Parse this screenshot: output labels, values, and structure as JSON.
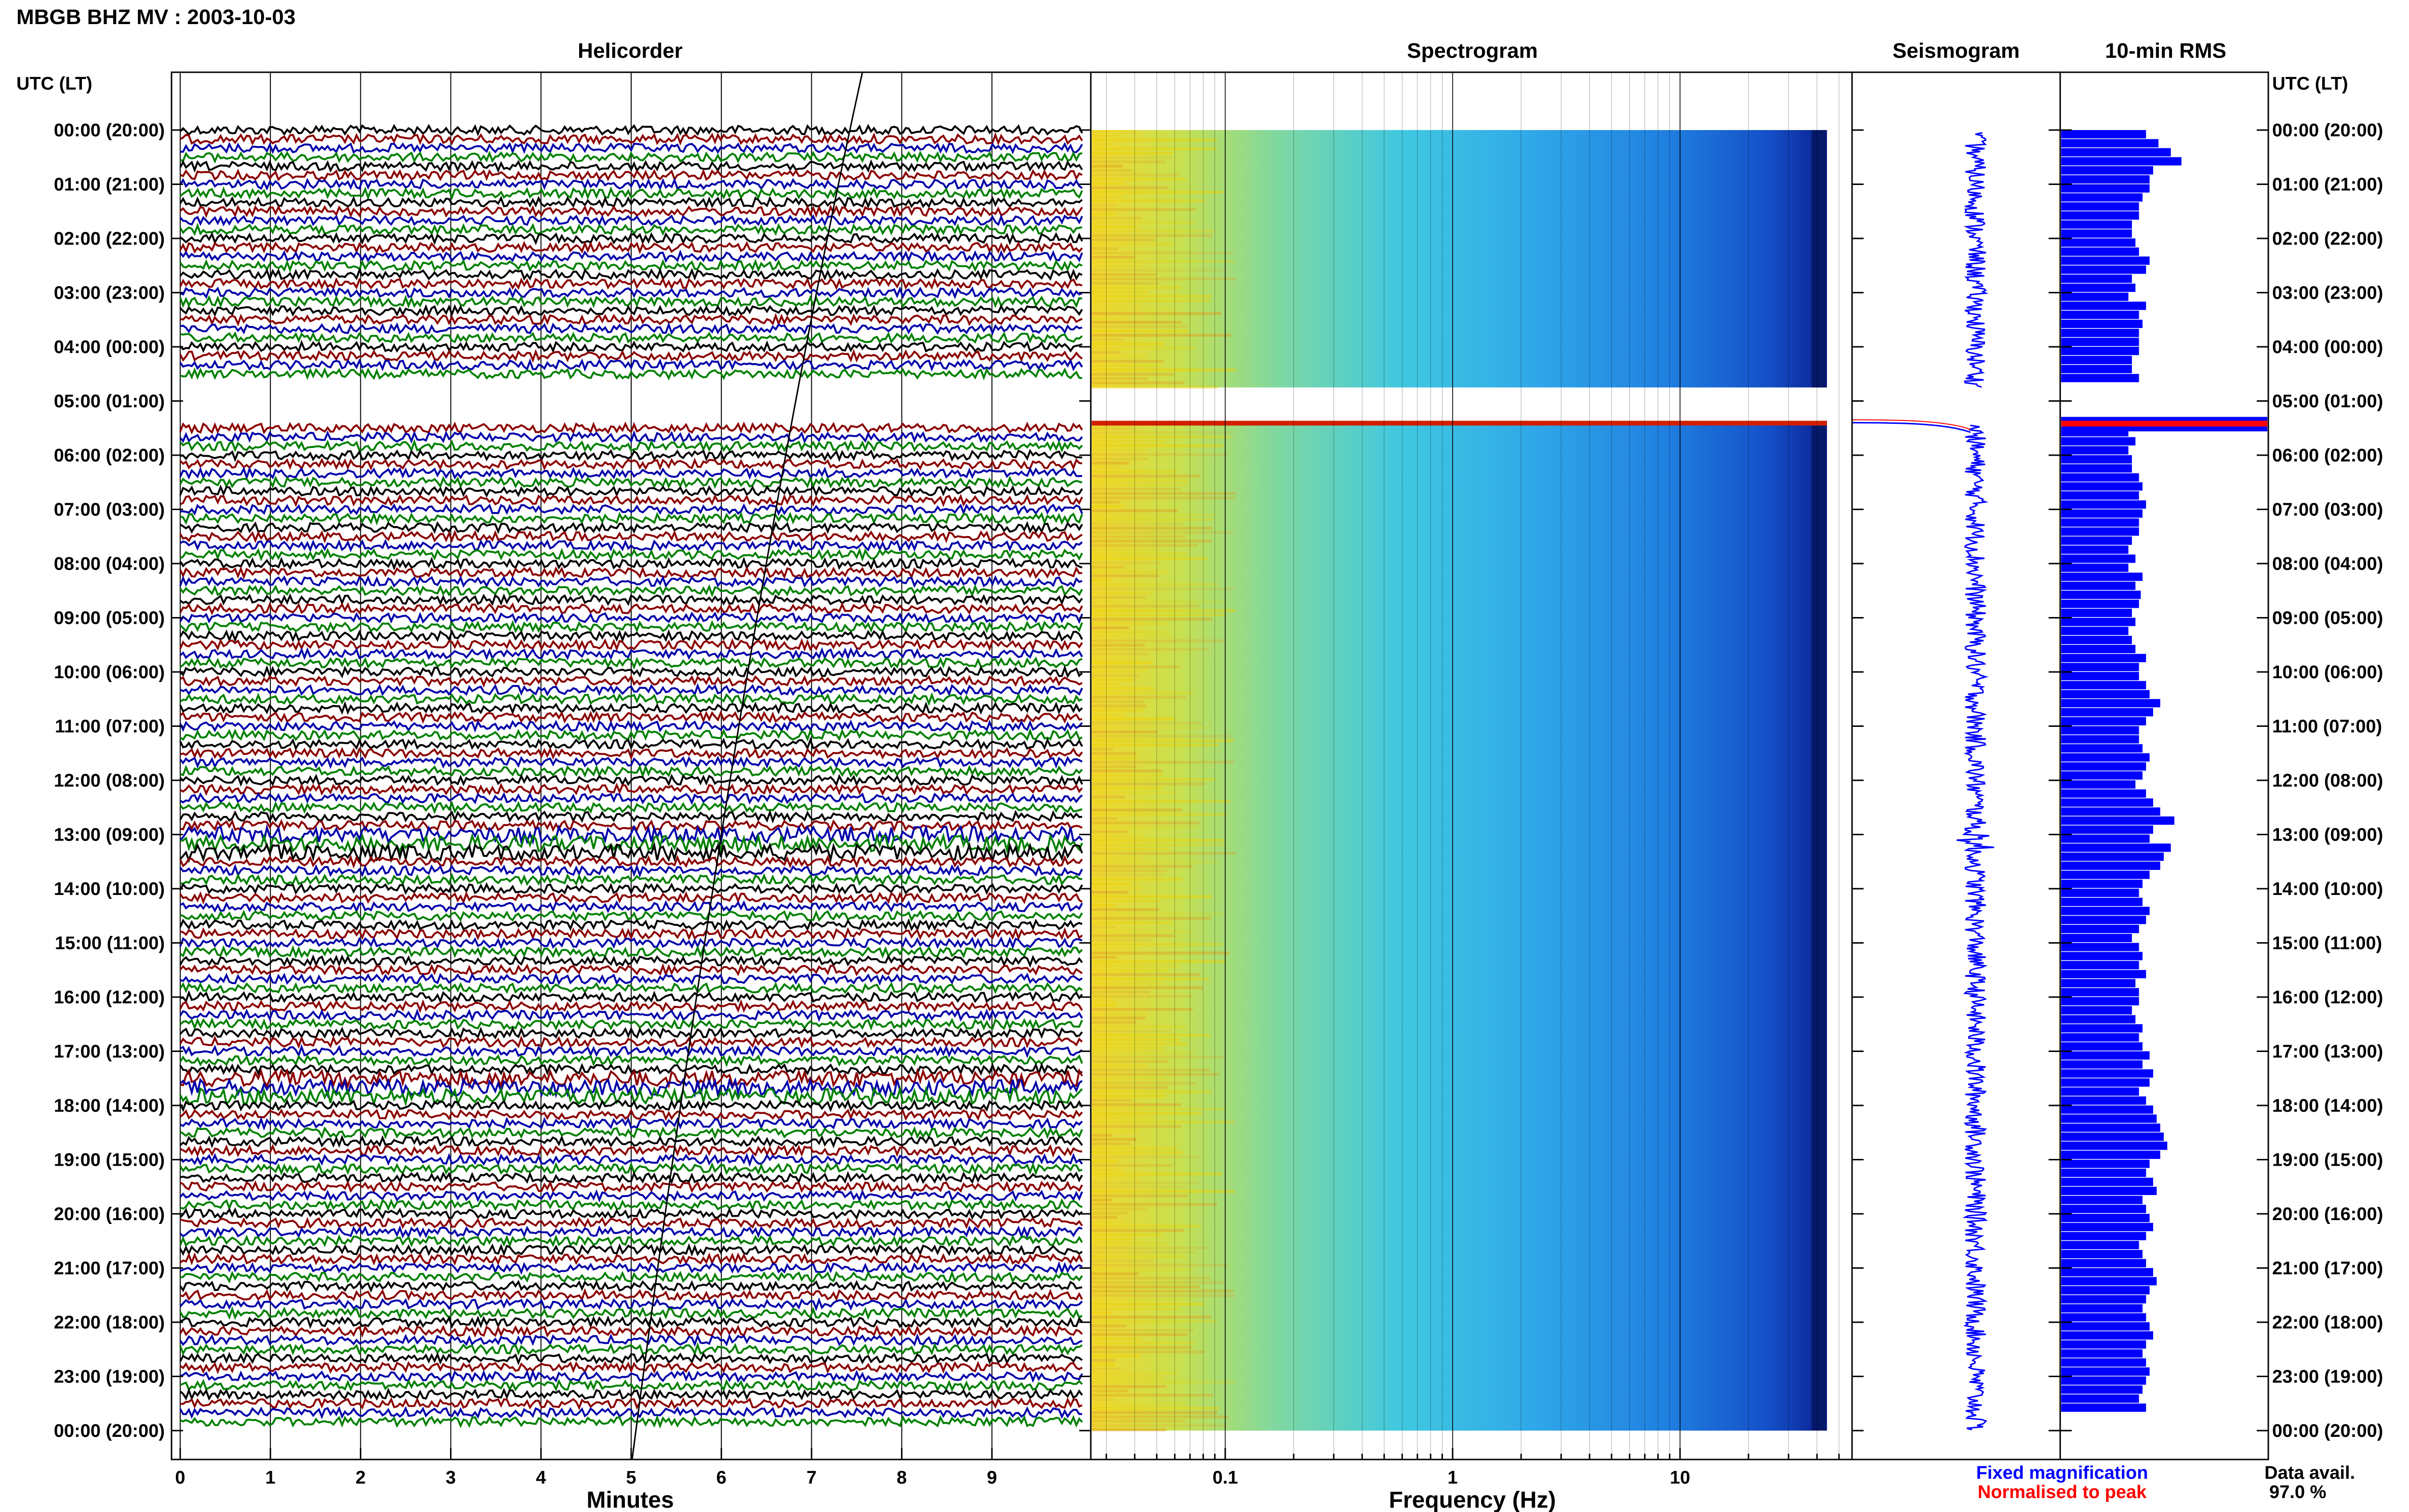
{
  "title": "MBGB BHZ MV : 2003-10-03",
  "panel_titles": {
    "helicorder": "Helicorder",
    "spectrogram": "Spectrogram",
    "seismogram": "Seismogram",
    "rms": "10-min RMS"
  },
  "utc_header": "UTC (LT)",
  "time_labels": [
    "00:00 (20:00)",
    "01:00 (21:00)",
    "02:00 (22:00)",
    "03:00 (23:00)",
    "04:00 (00:00)",
    "05:00 (01:00)",
    "06:00 (02:00)",
    "07:00 (03:00)",
    "08:00 (04:00)",
    "09:00 (05:00)",
    "10:00 (06:00)",
    "11:00 (07:00)",
    "12:00 (08:00)",
    "13:00 (09:00)",
    "14:00 (10:00)",
    "15:00 (11:00)",
    "16:00 (12:00)",
    "17:00 (13:00)",
    "18:00 (14:00)",
    "19:00 (15:00)",
    "20:00 (16:00)",
    "21:00 (17:00)",
    "22:00 (18:00)",
    "23:00 (19:00)",
    "00:00 (20:00)"
  ],
  "helicorder_axis": {
    "label": "Minutes",
    "ticks": [
      "0",
      "1",
      "2",
      "3",
      "4",
      "5",
      "6",
      "7",
      "8",
      "9"
    ]
  },
  "spectrogram_axis": {
    "label": "Frequency (Hz)",
    "ticks": [
      "0.1",
      "1",
      "10"
    ]
  },
  "legend": {
    "fixed": "Fixed magnification",
    "normalised": "Normalised to peak",
    "fixed_color": "#0000ff",
    "normalised_color": "#ff0000"
  },
  "data_avail": {
    "label": "Data avail.",
    "value": "97.0 %"
  },
  "colors": {
    "trace_cycle": [
      "#000000",
      "#8b0000",
      "#0000aa",
      "#008000"
    ],
    "rms_bar": "#0000ff",
    "gap_marker": "#ff0000"
  },
  "chart_data": {
    "type": "heatmap",
    "gap_hours": [
      4.75,
      5.4
    ],
    "rms_10min_relative": [
      0.48,
      0.55,
      0.62,
      0.68,
      0.52,
      0.5,
      0.5,
      0.46,
      0.44,
      0.44,
      0.4,
      0.4,
      0.42,
      0.44,
      0.5,
      0.48,
      0.4,
      0.42,
      0.38,
      0.48,
      0.44,
      0.46,
      0.44,
      0.44,
      0.44,
      0.4,
      0.4,
      0.44,
      0.46,
      0.4,
      0.44,
      0.44,
      0.42,
      0.38,
      0.42,
      0.38,
      0.4,
      0.4,
      0.44,
      0.46,
      0.44,
      0.48,
      0.46,
      0.44,
      0.44,
      0.4,
      0.38,
      0.42,
      0.38,
      0.46,
      0.42,
      0.45,
      0.44,
      0.4,
      0.42,
      0.38,
      0.4,
      0.42,
      0.48,
      0.44,
      0.44,
      0.48,
      0.5,
      0.56,
      0.52,
      0.48,
      0.44,
      0.44,
      0.46,
      0.5,
      0.48,
      0.46,
      0.42,
      0.48,
      0.52,
      0.56,
      0.64,
      0.52,
      0.5,
      0.62,
      0.58,
      0.56,
      0.5,
      0.46,
      0.44,
      0.46,
      0.5,
      0.48,
      0.44,
      0.4,
      0.44,
      0.46,
      0.44,
      0.48,
      0.42,
      0.44,
      0.44,
      0.4,
      0.42,
      0.46,
      0.44,
      0.46,
      0.5,
      0.46,
      0.52,
      0.5,
      0.44,
      0.48,
      0.52,
      0.54,
      0.56,
      0.58,
      0.6,
      0.56,
      0.5,
      0.48,
      0.52,
      0.54,
      0.46,
      0.48,
      0.5,
      0.52,
      0.48,
      0.44,
      0.46,
      0.48,
      0.52,
      0.54,
      0.5,
      0.48,
      0.46,
      0.48,
      0.5,
      0.52,
      0.48,
      0.46,
      0.48,
      0.5,
      0.48,
      0.46,
      0.44,
      0.48
    ]
  }
}
